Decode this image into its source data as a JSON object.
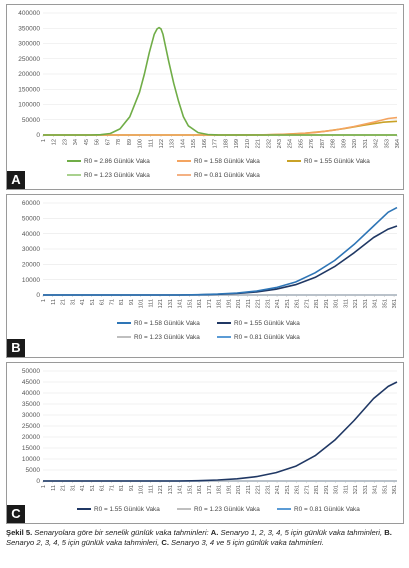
{
  "chart_data": [
    {
      "type": "line",
      "panel_label": "A",
      "ylim": [
        0,
        400000
      ],
      "yticks": [
        "0",
        "50000",
        "100000",
        "150000",
        "200000",
        "250000",
        "300000",
        "350000",
        "400000"
      ],
      "xtick_step": 11,
      "xlim": [
        1,
        364
      ],
      "series": [
        {
          "name": "R0 = 2.86 Günlük Vaka",
          "color": "#70ad47",
          "x": [
            1,
            50,
            60,
            70,
            80,
            90,
            100,
            105,
            110,
            115,
            118,
            120,
            122,
            124,
            126,
            130,
            135,
            140,
            145,
            150,
            160,
            170,
            180,
            190,
            200,
            364
          ],
          "values": [
            0,
            0,
            1000,
            5000,
            20000,
            60000,
            140000,
            200000,
            270000,
            330000,
            348000,
            352000,
            348000,
            330000,
            300000,
            240000,
            170000,
            110000,
            60000,
            30000,
            8000,
            1500,
            300,
            0,
            0,
            0
          ]
        },
        {
          "name": "R0 = 1.58 Günlük Vaka",
          "color": "#f4a460",
          "x": [
            1,
            180,
            200,
            220,
            240,
            260,
            280,
            300,
            320,
            340,
            355,
            364
          ],
          "values": [
            0,
            0,
            0,
            300,
            1200,
            3500,
            8000,
            16000,
            28000,
            42000,
            54000,
            57000
          ]
        },
        {
          "name": "R0 = 1.55 Günlük Vaka",
          "color": "#c9a227",
          "x": [
            1,
            190,
            210,
            230,
            250,
            270,
            290,
            310,
            330,
            350,
            364
          ],
          "values": [
            0,
            0,
            200,
            800,
            2500,
            6000,
            12000,
            21000,
            32000,
            42000,
            45000
          ]
        },
        {
          "name": "R0 = 1.23 Günlük Vaka",
          "color": "#a9d18e",
          "x": [
            1,
            364
          ],
          "values": [
            0,
            0
          ]
        },
        {
          "name": "R0 = 0.81 Günlük Vaka",
          "color": "#f4b183",
          "x": [
            1,
            364
          ],
          "values": [
            0,
            0
          ]
        }
      ],
      "legend_rows": [
        [
          0,
          1,
          2
        ],
        [
          3,
          4
        ]
      ]
    },
    {
      "type": "line",
      "panel_label": "B",
      "ylim": [
        0,
        60000
      ],
      "yticks": [
        "0",
        "10000",
        "20000",
        "30000",
        "40000",
        "50000",
        "60000"
      ],
      "xtick_step": 10,
      "xlim": [
        1,
        364
      ],
      "series": [
        {
          "name": "R0 = 1.58 Günlük Vaka",
          "color": "#2e75b6",
          "x": [
            1,
            140,
            160,
            180,
            200,
            220,
            240,
            260,
            280,
            300,
            320,
            340,
            355,
            364
          ],
          "values": [
            0,
            0,
            200,
            600,
            1300,
            2600,
            4800,
            8500,
            14500,
            22500,
            33000,
            45000,
            54000,
            57000
          ]
        },
        {
          "name": "R0 = 1.55 Günlük Vaka",
          "color": "#203864",
          "x": [
            1,
            140,
            160,
            180,
            200,
            220,
            240,
            260,
            280,
            300,
            320,
            340,
            355,
            364
          ],
          "values": [
            0,
            0,
            150,
            450,
            1000,
            2000,
            3800,
            6700,
            11500,
            18500,
            27500,
            37500,
            43000,
            45000
          ]
        },
        {
          "name": "R0 = 1.23 Günlük Vaka",
          "color": "#bfbfbf",
          "x": [
            1,
            364
          ],
          "values": [
            0,
            0
          ]
        },
        {
          "name": "R0 = 0.81 Günlük Vaka",
          "color": "#5b9bd5",
          "x": [
            1,
            364
          ],
          "values": [
            0,
            0
          ]
        }
      ],
      "legend_rows": [
        [
          0,
          1
        ],
        [
          2,
          3
        ]
      ]
    },
    {
      "type": "line",
      "panel_label": "C",
      "ylim": [
        0,
        50000
      ],
      "yticks": [
        "0",
        "5000",
        "10000",
        "15000",
        "20000",
        "25000",
        "30000",
        "35000",
        "40000",
        "45000",
        "50000"
      ],
      "xtick_step": 10,
      "xlim": [
        1,
        364
      ],
      "series": [
        {
          "name": "R0 = 1.55 Günlük Vaka",
          "color": "#203864",
          "x": [
            1,
            140,
            160,
            180,
            200,
            220,
            240,
            260,
            280,
            300,
            320,
            340,
            355,
            364
          ],
          "values": [
            0,
            0,
            150,
            450,
            1000,
            2000,
            3800,
            6700,
            11500,
            18500,
            27500,
            37500,
            43000,
            45000
          ]
        },
        {
          "name": "R0 = 1.23 Günlük Vaka",
          "color": "#bfbfbf",
          "x": [
            1,
            364
          ],
          "values": [
            0,
            0
          ]
        },
        {
          "name": "R0 = 0.81 Günlük Vaka",
          "color": "#5b9bd5",
          "x": [
            1,
            364
          ],
          "values": [
            0,
            0
          ]
        }
      ],
      "legend_rows": [
        [
          0,
          1,
          2
        ]
      ]
    }
  ],
  "caption": {
    "figure_label": "Şekil 5.",
    "intro": " Senaryolara göre bir senelik günlük vaka tahminleri: ",
    "a_label": "A.",
    "a_text": " Senaryo 1, 2, 3, 4, 5 için günlük vaka tahminleri, ",
    "b_label": "B.",
    "b_text": " Senaryo 2, 3, 4, 5 için günlük vaka tahminleri, ",
    "c_label": "C.",
    "c_text": " Senaryo 3, 4 ve 5 için günlük vaka tahminleri."
  }
}
